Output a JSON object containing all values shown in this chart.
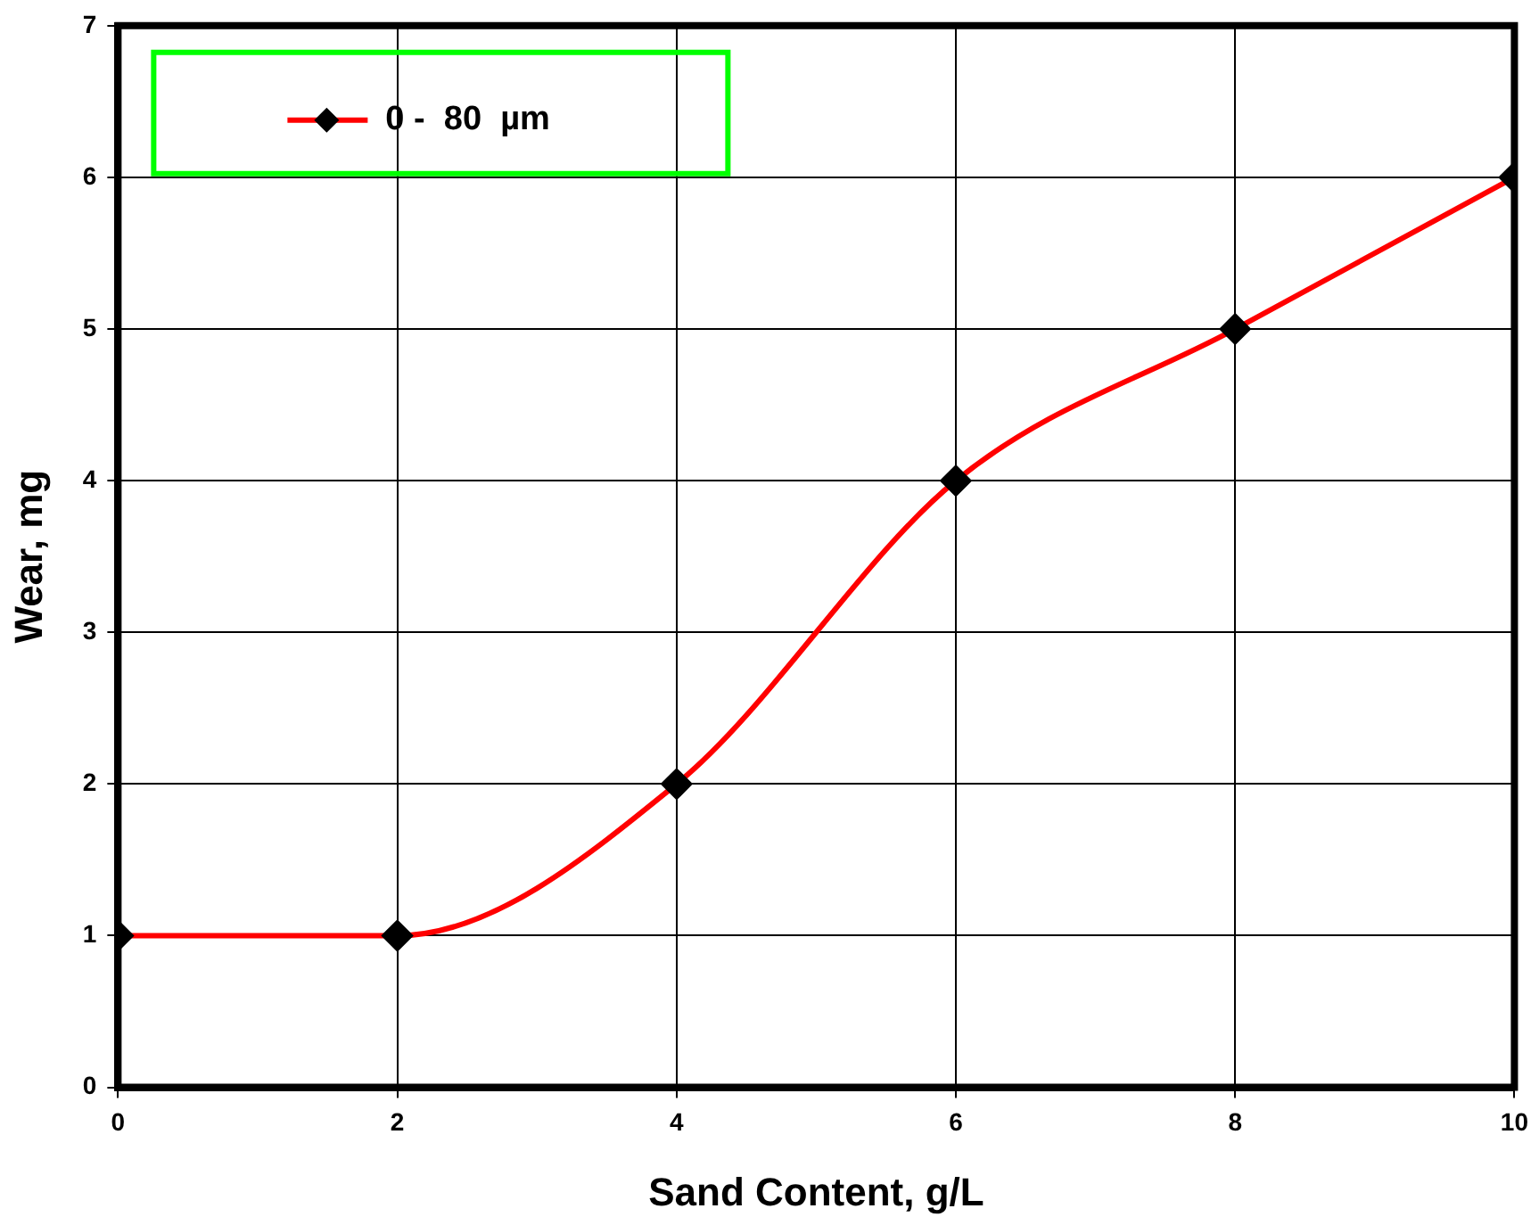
{
  "chart_data": {
    "type": "line",
    "xlabel": "Sand Content, g/L",
    "ylabel": "Wear, mg",
    "x": [
      0,
      2,
      4,
      6,
      8,
      10
    ],
    "series": [
      {
        "name": "0 -  80  µm",
        "color": "#ff0000",
        "values": [
          1,
          1,
          2,
          4,
          5,
          6
        ]
      }
    ],
    "xlim": [
      0,
      10
    ],
    "xticks": [
      0,
      2,
      4,
      6,
      8,
      10
    ],
    "ylim": [
      0,
      7
    ],
    "yticks": [
      0,
      1,
      2,
      3,
      4,
      5,
      6,
      7
    ],
    "grid": true,
    "legend": "top left",
    "marker": "diamond",
    "line_style": "solid"
  }
}
